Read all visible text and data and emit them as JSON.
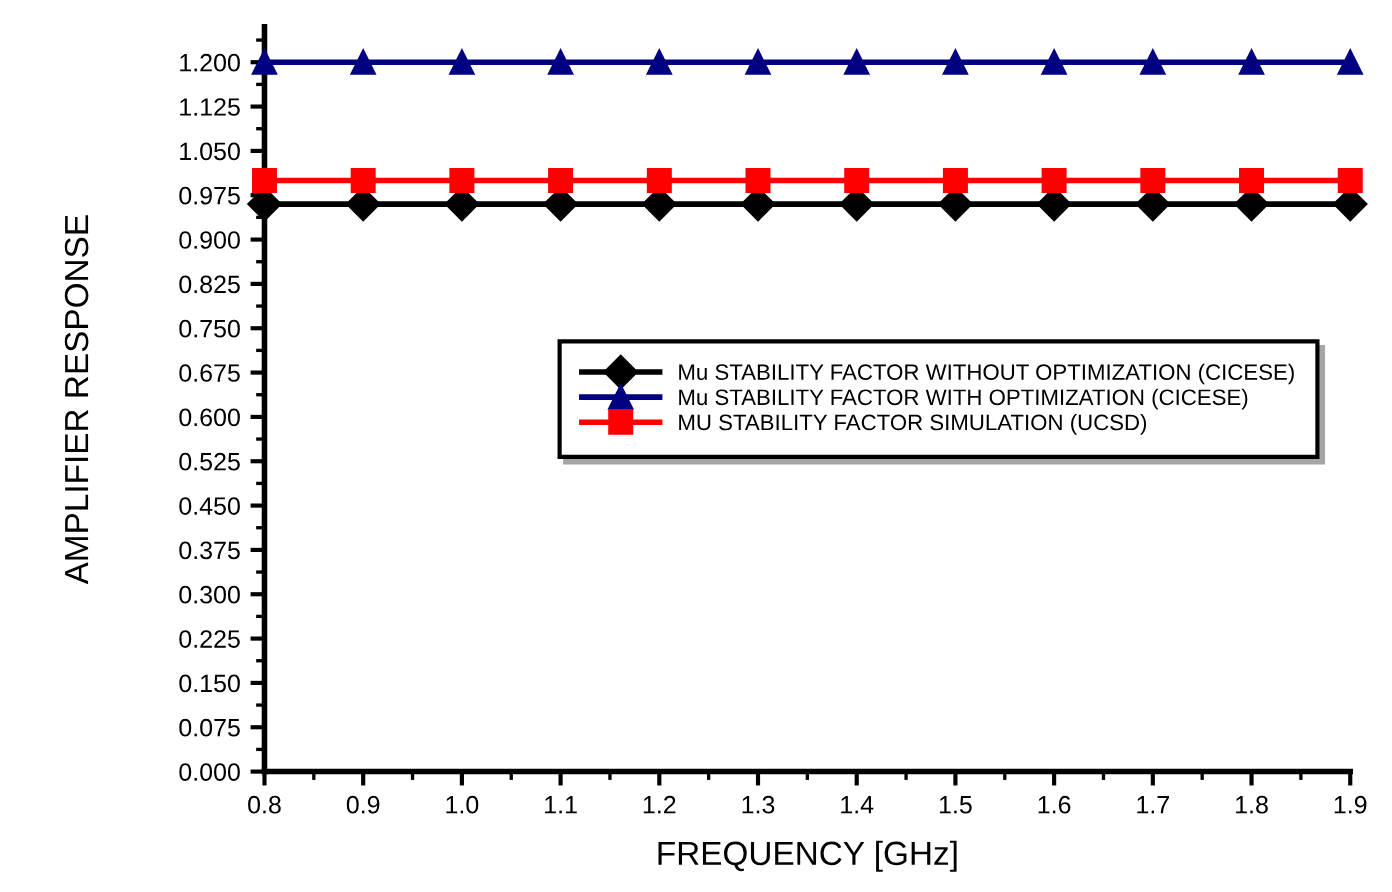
{
  "chart_data": {
    "type": "line",
    "xlabel": "FREQUENCY [GHz]",
    "ylabel": "AMPLIFIER RESPONSE",
    "x": [
      0.8,
      0.9,
      1.0,
      1.1,
      1.2,
      1.3,
      1.4,
      1.5,
      1.6,
      1.7,
      1.8,
      1.9
    ],
    "series": [
      {
        "name": "Mu STABILITY FACTOR WITHOUT OPTIMIZATION (CICESE)",
        "color": "#000000",
        "marker": "diamond",
        "values": [
          0.96,
          0.96,
          0.96,
          0.96,
          0.96,
          0.96,
          0.96,
          0.96,
          0.96,
          0.96,
          0.96,
          0.96
        ]
      },
      {
        "name": "Mu STABILITY FACTOR WITH OPTIMIZATION (CICESE)",
        "color": "#000080",
        "marker": "triangle",
        "values": [
          1.2,
          1.2,
          1.2,
          1.2,
          1.2,
          1.2,
          1.2,
          1.2,
          1.2,
          1.2,
          1.2,
          1.2
        ]
      },
      {
        "name": "MU STABILITY FACTOR SIMULATION (UCSD)",
        "color": "#ff0000",
        "marker": "square",
        "values": [
          1.0,
          1.0,
          1.0,
          1.0,
          1.0,
          1.0,
          1.0,
          1.0,
          1.0,
          1.0,
          1.0,
          1.0
        ]
      }
    ],
    "xlim": [
      0.8,
      1.9
    ],
    "xticks": [
      0.8,
      0.9,
      {
        "value": 1.0,
        "label": "1.0"
      },
      1.1,
      1.2,
      1.3,
      1.4,
      1.5,
      1.6,
      1.7,
      1.8,
      1.9
    ],
    "ylim": [
      0,
      1.26
    ],
    "yticks": [
      {
        "value": 0,
        "label": "0.000"
      },
      {
        "value": 0.075,
        "label": "0.075"
      },
      {
        "value": 0.15,
        "label": "0.150"
      },
      {
        "value": 0.225,
        "label": "0.225"
      },
      {
        "value": 0.3,
        "label": "0.300"
      },
      {
        "value": 0.375,
        "label": "0.375"
      },
      {
        "value": 0.45,
        "label": "0.450"
      },
      {
        "value": 0.525,
        "label": "0.525"
      },
      {
        "value": 0.6,
        "label": "0.600"
      },
      {
        "value": 0.675,
        "label": "0.675"
      },
      {
        "value": 0.75,
        "label": "0.750"
      },
      {
        "value": 0.825,
        "label": "0.825"
      },
      {
        "value": 0.9,
        "label": "0.900"
      },
      {
        "value": 0.975,
        "label": "0.975"
      },
      {
        "value": 1.05,
        "label": "1.050"
      },
      {
        "value": 1.125,
        "label": "1.125"
      },
      {
        "value": 1.2,
        "label": "1.200"
      }
    ],
    "grid": false,
    "legend": "right",
    "line_style": "solid"
  }
}
